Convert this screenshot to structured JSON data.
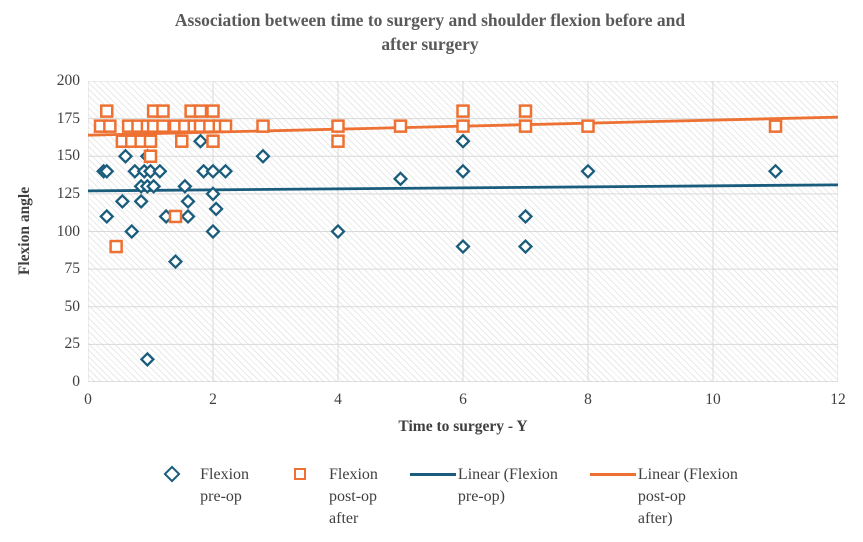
{
  "title": {
    "line1": "Association between time to surgery and shoulder flexion before and",
    "line2": "after surgery"
  },
  "colors": {
    "pre_op": "#1A5C7C",
    "post_op": "#ED7132",
    "gridline": "#D9D9D9",
    "axis_line": "#BFBFBF",
    "title_text": "#595959",
    "axis_text": "#3F3F3F"
  },
  "chart_data": {
    "type": "scatter",
    "title": "Association between time to surgery and shoulder flexion before and after surgery",
    "xlabel": "Time to surgery - Y",
    "ylabel": "Flexion angle",
    "xlim": [
      0,
      12
    ],
    "ylim": [
      0,
      200
    ],
    "x_ticks": [
      0,
      2,
      4,
      6,
      8,
      10,
      12
    ],
    "y_ticks": [
      0,
      25,
      50,
      75,
      100,
      125,
      150,
      175,
      200
    ],
    "grid": "both",
    "plot_area_hatched": true,
    "legend_position": "bottom",
    "series": [
      {
        "name": "Flexion pre-op",
        "marker": "diamond",
        "color": "#1A5C7C",
        "points": [
          [
            0.25,
            140
          ],
          [
            0.3,
            140
          ],
          [
            0.75,
            140
          ],
          [
            0.9,
            140
          ],
          [
            1.0,
            140
          ],
          [
            1.15,
            140
          ],
          [
            1.85,
            140
          ],
          [
            2.0,
            140
          ],
          [
            2.2,
            140
          ],
          [
            6,
            140
          ],
          [
            8,
            140
          ],
          [
            11,
            140
          ],
          [
            1.8,
            160
          ],
          [
            6,
            160
          ],
          [
            0.6,
            150
          ],
          [
            0.95,
            150
          ],
          [
            2.8,
            150
          ],
          [
            5,
            135
          ],
          [
            0.85,
            130
          ],
          [
            0.95,
            130
          ],
          [
            1.05,
            130
          ],
          [
            1.55,
            130
          ],
          [
            2.0,
            125
          ],
          [
            0.55,
            120
          ],
          [
            0.85,
            120
          ],
          [
            1.6,
            120
          ],
          [
            2.05,
            115
          ],
          [
            0.3,
            110
          ],
          [
            1.25,
            110
          ],
          [
            1.6,
            110
          ],
          [
            7,
            110
          ],
          [
            0.7,
            100
          ],
          [
            2.0,
            100
          ],
          [
            4,
            100
          ],
          [
            6,
            90
          ],
          [
            7,
            90
          ],
          [
            1.4,
            80
          ],
          [
            0.95,
            15
          ]
        ]
      },
      {
        "name": "Flexion post-op after",
        "marker": "square",
        "color": "#ED7132",
        "points": [
          [
            0.3,
            180
          ],
          [
            1.05,
            180
          ],
          [
            1.2,
            180
          ],
          [
            1.65,
            180
          ],
          [
            1.8,
            180
          ],
          [
            2.0,
            180
          ],
          [
            6,
            180
          ],
          [
            7,
            180
          ],
          [
            0.2,
            170
          ],
          [
            0.35,
            170
          ],
          [
            0.65,
            170
          ],
          [
            0.8,
            170
          ],
          [
            0.95,
            170
          ],
          [
            1.05,
            170
          ],
          [
            1.2,
            170
          ],
          [
            1.4,
            170
          ],
          [
            1.55,
            170
          ],
          [
            1.7,
            170
          ],
          [
            1.8,
            170
          ],
          [
            1.95,
            170
          ],
          [
            2.1,
            170
          ],
          [
            2.2,
            170
          ],
          [
            2.8,
            170
          ],
          [
            4,
            170
          ],
          [
            5,
            170
          ],
          [
            6,
            170
          ],
          [
            7,
            170
          ],
          [
            8,
            170
          ],
          [
            11,
            170
          ],
          [
            0.55,
            160
          ],
          [
            0.7,
            160
          ],
          [
            0.85,
            160
          ],
          [
            1.0,
            160
          ],
          [
            1.5,
            160
          ],
          [
            2.0,
            160
          ],
          [
            4,
            160
          ],
          [
            1.0,
            150
          ],
          [
            1.4,
            110
          ],
          [
            0.45,
            90
          ]
        ]
      }
    ],
    "trendlines": [
      {
        "name": "Linear (Flexion pre-op)",
        "color": "#1A5C7C",
        "from": [
          0,
          127
        ],
        "to": [
          12,
          131
        ]
      },
      {
        "name": "Linear (Flexion post-op after)",
        "color": "#ED7132",
        "from": [
          0,
          164
        ],
        "to": [
          12,
          176
        ]
      }
    ]
  },
  "x_axis": {
    "title": "Time to surgery - Y"
  },
  "y_axis": {
    "title": "Flexion angle"
  },
  "legend": {
    "items": [
      {
        "marker": "diamond",
        "color": "#1A5C7C",
        "label": "Flexion\npre-op"
      },
      {
        "marker": "square",
        "color": "#ED7132",
        "label": "Flexion\npost-op\nafter"
      },
      {
        "marker": "line",
        "color": "#1A5C7C",
        "label": "Linear (Flexion\npre-op)"
      },
      {
        "marker": "line",
        "color": "#ED7132",
        "label": "Linear (Flexion\npost-op\nafter)"
      }
    ]
  }
}
